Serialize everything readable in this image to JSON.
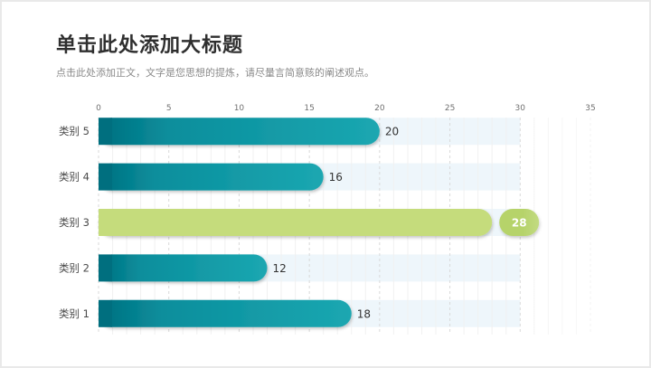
{
  "header": {
    "title": "单击此处添加大标题",
    "subtitle": "点击此处添加正文，文字是您思想的提炼，请尽量言简意赅的阐述观点。"
  },
  "colors": {
    "bar_dark": "#007c8b",
    "bar_light": "#1ba7b1",
    "highlight": "#c5dc7c",
    "highlight_badge": "#b6d36a",
    "track": "#eef6fb"
  },
  "chart_data": {
    "type": "bar",
    "orientation": "horizontal",
    "categories": [
      "类别 5",
      "类别 4",
      "类别 3",
      "类别 2",
      "类别 1"
    ],
    "values": [
      20,
      16,
      28,
      12,
      18
    ],
    "highlight_category": "类别 3",
    "track_max": 30,
    "xlim": [
      0,
      35
    ],
    "xticks": [
      0,
      5,
      10,
      15,
      20,
      25,
      30,
      35
    ],
    "grid": true
  }
}
